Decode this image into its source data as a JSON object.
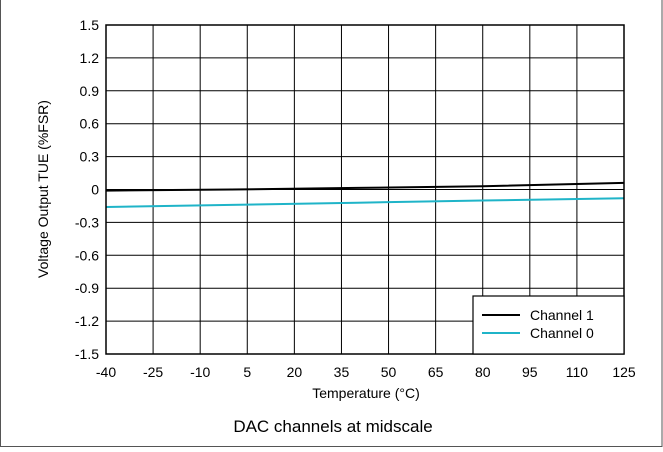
{
  "chart_data": {
    "type": "line",
    "title": "",
    "caption": "DAC channels at midscale",
    "xlabel": "Temperature (°C)",
    "ylabel": "Voltage Output TUE (%FSR)",
    "xlim": [
      -40,
      125
    ],
    "ylim": [
      -1.5,
      1.5
    ],
    "x_ticks": [
      -40,
      -25,
      -10,
      5,
      20,
      35,
      50,
      65,
      80,
      95,
      110,
      125
    ],
    "x_tick_labels": [
      "-40",
      "-25",
      "-10",
      "5",
      "20",
      "35",
      "50",
      "65",
      "80",
      "95",
      "110",
      "125"
    ],
    "y_ticks": [
      1.5,
      1.2,
      0.9,
      0.6,
      0.3,
      0,
      -0.3,
      -0.6,
      -0.9,
      -1.2,
      -1.5
    ],
    "y_tick_labels": [
      "1.5",
      "1.2",
      "0.9",
      "0.6",
      "0.3",
      "0",
      "-0.3",
      "-0.6",
      "-0.9",
      "-1.2",
      "-1.5"
    ],
    "grid": true,
    "legend_position": "bottom-right",
    "series": [
      {
        "name": "Channel 1",
        "color": "#000000",
        "x": [
          -40,
          0,
          40,
          80,
          125
        ],
        "y": [
          -0.01,
          0.0,
          0.015,
          0.03,
          0.06
        ]
      },
      {
        "name": "Channel 0",
        "color": "#1fb4c8",
        "x": [
          -40,
          0,
          40,
          80,
          125
        ],
        "y": [
          -0.16,
          -0.14,
          -0.12,
          -0.1,
          -0.08
        ]
      }
    ]
  }
}
